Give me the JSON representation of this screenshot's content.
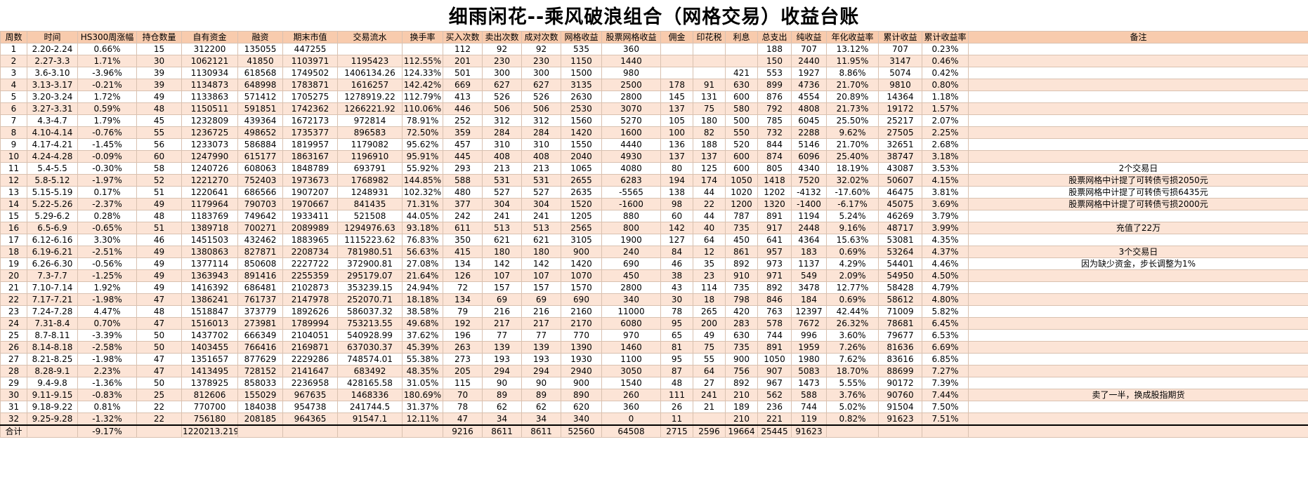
{
  "title": "细雨闲花--乘风破浪组合（网格交易）收益台账",
  "colors": {
    "band": "#fce4d6",
    "header": "#f8cbad",
    "grid": "#d9c1b0",
    "total_border": "#000000"
  },
  "table": {
    "columns": [
      "周数",
      "时间",
      "HS300周涨幅",
      "持仓数量",
      "自有资金",
      "融资",
      "期末市值",
      "交易流水",
      "换手率",
      "买入次数",
      "卖出次数",
      "成对次数",
      "网格收益",
      "股票网格收益",
      "佣金",
      "印花税",
      "利息",
      "总支出",
      "纯收益",
      "年化收益率",
      "累计收益",
      "累计收益率",
      "备注"
    ],
    "rows": [
      [
        "1",
        "2.20-2.24",
        "0.66%",
        "15",
        "312200",
        "135055",
        "447255",
        "",
        "",
        "112",
        "92",
        "92",
        "535",
        "360",
        "",
        "",
        "",
        "188",
        "707",
        "13.12%",
        "707",
        "0.23%",
        ""
      ],
      [
        "2",
        "2.27-3.3",
        "1.71%",
        "30",
        "1062121",
        "41850",
        "1103971",
        "1195423",
        "112.55%",
        "201",
        "230",
        "230",
        "1150",
        "1440",
        "",
        "",
        "",
        "150",
        "2440",
        "11.95%",
        "3147",
        "0.46%",
        ""
      ],
      [
        "3",
        "3.6-3.10",
        "-3.96%",
        "39",
        "1130934",
        "618568",
        "1749502",
        "1406134.26",
        "124.33%",
        "501",
        "300",
        "300",
        "1500",
        "980",
        "",
        "",
        "421",
        "553",
        "1927",
        "8.86%",
        "5074",
        "0.42%",
        ""
      ],
      [
        "4",
        "3.13-3.17",
        "-0.21%",
        "39",
        "1134873",
        "648998",
        "1783871",
        "1616257",
        "142.42%",
        "669",
        "627",
        "627",
        "3135",
        "2500",
        "178",
        "91",
        "630",
        "899",
        "4736",
        "21.70%",
        "9810",
        "0.80%",
        ""
      ],
      [
        "5",
        "3.20-3.24",
        "1.72%",
        "49",
        "1133863",
        "571412",
        "1705275",
        "1278919.22",
        "112.79%",
        "413",
        "526",
        "526",
        "2630",
        "2800",
        "145",
        "131",
        "600",
        "876",
        "4554",
        "20.89%",
        "14364",
        "1.18%",
        ""
      ],
      [
        "6",
        "3.27-3.31",
        "0.59%",
        "48",
        "1150511",
        "591851",
        "1742362",
        "1266221.92",
        "110.06%",
        "446",
        "506",
        "506",
        "2530",
        "3070",
        "137",
        "75",
        "580",
        "792",
        "4808",
        "21.73%",
        "19172",
        "1.57%",
        ""
      ],
      [
        "7",
        "4.3-4.7",
        "1.79%",
        "45",
        "1232809",
        "439364",
        "1672173",
        "972814",
        "78.91%",
        "252",
        "312",
        "312",
        "1560",
        "5270",
        "105",
        "180",
        "500",
        "785",
        "6045",
        "25.50%",
        "25217",
        "2.07%",
        ""
      ],
      [
        "8",
        "4.10-4.14",
        "-0.76%",
        "55",
        "1236725",
        "498652",
        "1735377",
        "896583",
        "72.50%",
        "359",
        "284",
        "284",
        "1420",
        "1600",
        "100",
        "82",
        "550",
        "732",
        "2288",
        "9.62%",
        "27505",
        "2.25%",
        ""
      ],
      [
        "9",
        "4.17-4.21",
        "-1.45%",
        "56",
        "1233073",
        "586884",
        "1819957",
        "1179082",
        "95.62%",
        "457",
        "310",
        "310",
        "1550",
        "4440",
        "136",
        "188",
        "520",
        "844",
        "5146",
        "21.70%",
        "32651",
        "2.68%",
        ""
      ],
      [
        "10",
        "4.24-4.28",
        "-0.09%",
        "60",
        "1247990",
        "615177",
        "1863167",
        "1196910",
        "95.91%",
        "445",
        "408",
        "408",
        "2040",
        "4930",
        "137",
        "137",
        "600",
        "874",
        "6096",
        "25.40%",
        "38747",
        "3.18%",
        ""
      ],
      [
        "11",
        "5.4-5.5",
        "-0.30%",
        "58",
        "1240726",
        "608063",
        "1848789",
        "693791",
        "55.92%",
        "293",
        "213",
        "213",
        "1065",
        "4080",
        "80",
        "125",
        "600",
        "805",
        "4340",
        "18.19%",
        "43087",
        "3.53%",
        "2个交易日"
      ],
      [
        "12",
        "5.8-5.12",
        "-1.97%",
        "52",
        "1221270",
        "752403",
        "1973673",
        "1768982",
        "144.85%",
        "588",
        "531",
        "531",
        "2655",
        "6283",
        "194",
        "174",
        "1050",
        "1418",
        "7520",
        "32.02%",
        "50607",
        "4.15%",
        "股票网格中计提了可转债亏损2050元"
      ],
      [
        "13",
        "5.15-5.19",
        "0.17%",
        "51",
        "1220641",
        "686566",
        "1907207",
        "1248931",
        "102.32%",
        "480",
        "527",
        "527",
        "2635",
        "-5565",
        "138",
        "44",
        "1020",
        "1202",
        "-4132",
        "-17.60%",
        "46475",
        "3.81%",
        "股票网格中计提了可转债亏损6435元"
      ],
      [
        "14",
        "5.22-5.26",
        "-2.37%",
        "49",
        "1179964",
        "790703",
        "1970667",
        "841435",
        "71.31%",
        "377",
        "304",
        "304",
        "1520",
        "-1600",
        "98",
        "22",
        "1200",
        "1320",
        "-1400",
        "-6.17%",
        "45075",
        "3.69%",
        "股票网格中计提了可转债亏损2000元"
      ],
      [
        "15",
        "5.29-6.2",
        "0.28%",
        "48",
        "1183769",
        "749642",
        "1933411",
        "521508",
        "44.05%",
        "242",
        "241",
        "241",
        "1205",
        "880",
        "60",
        "44",
        "787",
        "891",
        "1194",
        "5.24%",
        "46269",
        "3.79%",
        ""
      ],
      [
        "16",
        "6.5-6.9",
        "-0.65%",
        "51",
        "1389718",
        "700271",
        "2089989",
        "1294976.63",
        "93.18%",
        "611",
        "513",
        "513",
        "2565",
        "800",
        "142",
        "40",
        "735",
        "917",
        "2448",
        "9.16%",
        "48717",
        "3.99%",
        "充值了22万"
      ],
      [
        "17",
        "6.12-6.16",
        "3.30%",
        "46",
        "1451503",
        "432462",
        "1883965",
        "1115223.62",
        "76.83%",
        "350",
        "621",
        "621",
        "3105",
        "1900",
        "127",
        "64",
        "450",
        "641",
        "4364",
        "15.63%",
        "53081",
        "4.35%",
        ""
      ],
      [
        "18",
        "6.19-6.21",
        "-2.51%",
        "49",
        "1380863",
        "827871",
        "2208734",
        "781980.51",
        "56.63%",
        "415",
        "180",
        "180",
        "900",
        "240",
        "84",
        "12",
        "861",
        "957",
        "183",
        "0.69%",
        "53264",
        "4.37%",
        "3个交易日"
      ],
      [
        "19",
        "6.26-6.30",
        "-0.56%",
        "49",
        "1377114",
        "850608",
        "2227722",
        "372900.81",
        "27.08%",
        "134",
        "142",
        "142",
        "1420",
        "690",
        "46",
        "35",
        "892",
        "973",
        "1137",
        "4.29%",
        "54401",
        "4.46%",
        "因为缺少资金，步长调整为1%"
      ],
      [
        "20",
        "7.3-7.7",
        "-1.25%",
        "49",
        "1363943",
        "891416",
        "2255359",
        "295179.07",
        "21.64%",
        "126",
        "107",
        "107",
        "1070",
        "450",
        "38",
        "23",
        "910",
        "971",
        "549",
        "2.09%",
        "54950",
        "4.50%",
        ""
      ],
      [
        "21",
        "7.10-7.14",
        "1.92%",
        "49",
        "1416392",
        "686481",
        "2102873",
        "353239.15",
        "24.94%",
        "72",
        "157",
        "157",
        "1570",
        "2800",
        "43",
        "114",
        "735",
        "892",
        "3478",
        "12.77%",
        "58428",
        "4.79%",
        ""
      ],
      [
        "22",
        "7.17-7.21",
        "-1.98%",
        "47",
        "1386241",
        "761737",
        "2147978",
        "252070.71",
        "18.18%",
        "134",
        "69",
        "69",
        "690",
        "340",
        "30",
        "18",
        "798",
        "846",
        "184",
        "0.69%",
        "58612",
        "4.80%",
        ""
      ],
      [
        "23",
        "7.24-7.28",
        "4.47%",
        "48",
        "1518847",
        "373779",
        "1892626",
        "586037.32",
        "38.58%",
        "79",
        "216",
        "216",
        "2160",
        "11000",
        "78",
        "265",
        "420",
        "763",
        "12397",
        "42.44%",
        "71009",
        "5.82%",
        ""
      ],
      [
        "24",
        "7.31-8.4",
        "0.70%",
        "47",
        "1516013",
        "273981",
        "1789994",
        "753213.55",
        "49.68%",
        "192",
        "217",
        "217",
        "2170",
        "6080",
        "95",
        "200",
        "283",
        "578",
        "7672",
        "26.32%",
        "78681",
        "6.45%",
        ""
      ],
      [
        "25",
        "8.7-8.11",
        "-3.39%",
        "50",
        "1437702",
        "666349",
        "2104051",
        "540928.99",
        "37.62%",
        "196",
        "77",
        "77",
        "770",
        "970",
        "65",
        "49",
        "630",
        "744",
        "996",
        "3.60%",
        "79677",
        "6.53%",
        ""
      ],
      [
        "26",
        "8.14-8.18",
        "-2.58%",
        "50",
        "1403455",
        "766416",
        "2169871",
        "637030.37",
        "45.39%",
        "263",
        "139",
        "139",
        "1390",
        "1460",
        "81",
        "75",
        "735",
        "891",
        "1959",
        "7.26%",
        "81636",
        "6.69%",
        ""
      ],
      [
        "27",
        "8.21-8.25",
        "-1.98%",
        "47",
        "1351657",
        "877629",
        "2229286",
        "748574.01",
        "55.38%",
        "273",
        "193",
        "193",
        "1930",
        "1100",
        "95",
        "55",
        "900",
        "1050",
        "1980",
        "7.62%",
        "83616",
        "6.85%",
        ""
      ],
      [
        "28",
        "8.28-9.1",
        "2.23%",
        "47",
        "1413495",
        "728152",
        "2141647",
        "683492",
        "48.35%",
        "205",
        "294",
        "294",
        "2940",
        "3050",
        "87",
        "64",
        "756",
        "907",
        "5083",
        "18.70%",
        "88699",
        "7.27%",
        ""
      ],
      [
        "29",
        "9.4-9.8",
        "-1.36%",
        "50",
        "1378925",
        "858033",
        "2236958",
        "428165.58",
        "31.05%",
        "115",
        "90",
        "90",
        "900",
        "1540",
        "48",
        "27",
        "892",
        "967",
        "1473",
        "5.55%",
        "90172",
        "7.39%",
        ""
      ],
      [
        "30",
        "9.11-9.15",
        "-0.83%",
        "25",
        "812606",
        "155029",
        "967635",
        "1468336",
        "180.69%",
        "70",
        "89",
        "89",
        "890",
        "260",
        "111",
        "241",
        "210",
        "562",
        "588",
        "3.76%",
        "90760",
        "7.44%",
        "卖了一半，换成股指期货"
      ],
      [
        "31",
        "9.18-9.22",
        "0.81%",
        "22",
        "770700",
        "184038",
        "954738",
        "241744.5",
        "31.37%",
        "78",
        "62",
        "62",
        "620",
        "360",
        "26",
        "21",
        "189",
        "236",
        "744",
        "5.02%",
        "91504",
        "7.50%",
        ""
      ],
      [
        "32",
        "9.25-9.28",
        "-1.32%",
        "22",
        "756180",
        "208185",
        "964365",
        "91547.1",
        "12.11%",
        "47",
        "34",
        "34",
        "340",
        "0",
        "11",
        "",
        "210",
        "221",
        "119",
        "0.82%",
        "91623",
        "7.51%",
        ""
      ]
    ],
    "total_row": [
      "合计",
      "",
      "-9.17%",
      "",
      "1220213.219",
      "",
      "",
      "",
      "",
      "9216",
      "8611",
      "8611",
      "52560",
      "64508",
      "2715",
      "2596",
      "19664",
      "25445",
      "91623",
      "",
      "",
      "",
      ""
    ]
  }
}
